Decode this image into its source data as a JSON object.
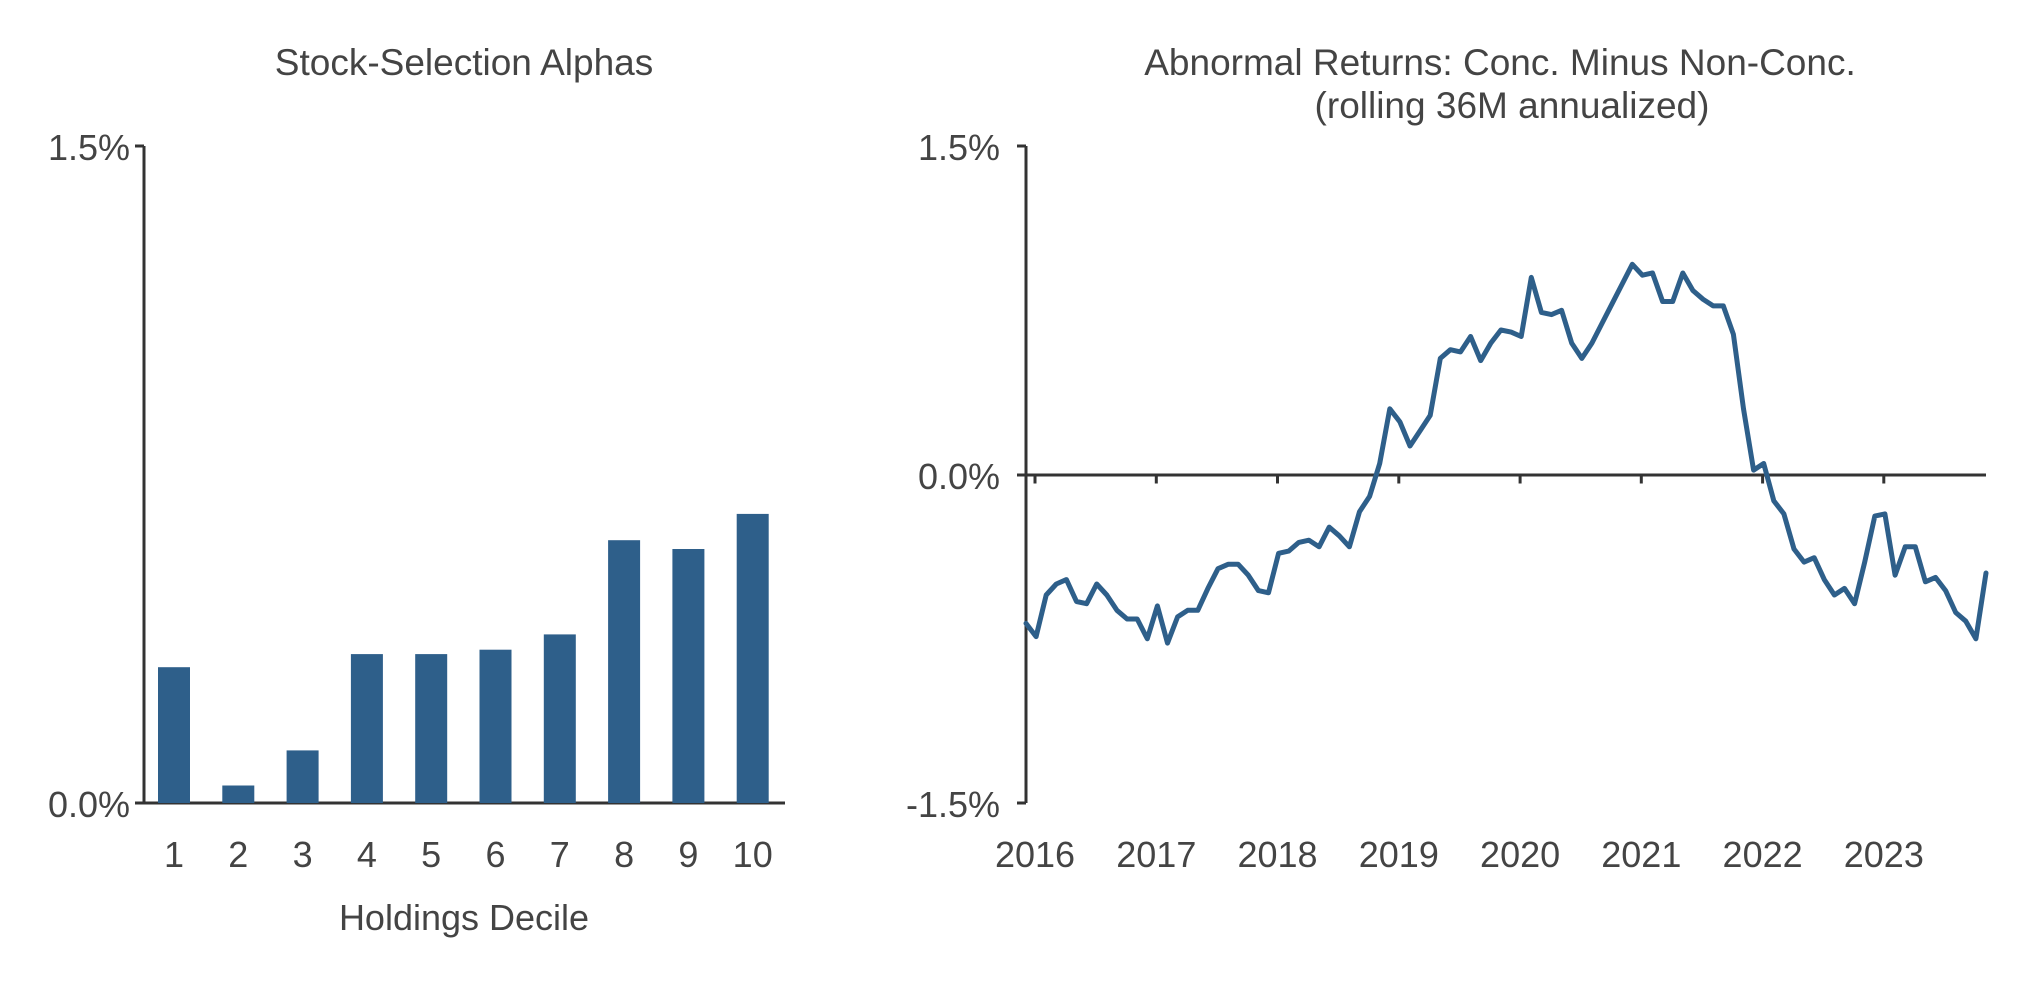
{
  "chart_data": [
    {
      "type": "bar",
      "title": "Stock-Selection Alphas",
      "xlabel": "Holdings Decile",
      "ylabel": "",
      "ylim": [
        0.0,
        1.5
      ],
      "yticks": [
        "0.0%",
        "1.5%"
      ],
      "categories": [
        "1",
        "2",
        "3",
        "4",
        "5",
        "6",
        "7",
        "8",
        "9",
        "10"
      ],
      "values": [
        0.31,
        0.04,
        0.12,
        0.34,
        0.34,
        0.35,
        0.385,
        0.6,
        0.58,
        0.66
      ],
      "color": "#2e5f8a",
      "grid": false,
      "legend": "none"
    },
    {
      "type": "line",
      "title": "Abnormal Returns: Conc. Minus Non-Conc.",
      "subtitle": "(rolling 36M annualized)",
      "xlabel": "",
      "ylabel": "",
      "ylim": [
        -1.5,
        1.5
      ],
      "yticks": [
        "1.5%",
        "0.0%",
        "-1.5%"
      ],
      "xlim": [
        "2016-01",
        "2023-12"
      ],
      "xticks": [
        "2016",
        "2017",
        "2018",
        "2019",
        "2020",
        "2021",
        "2022",
        "2023"
      ],
      "color": "#2e5f8a",
      "grid": false,
      "legend": "none",
      "x": [
        "2016-01",
        "2016-02",
        "2016-03",
        "2016-04",
        "2016-05",
        "2016-06",
        "2016-07",
        "2016-08",
        "2016-09",
        "2016-10",
        "2016-11",
        "2016-12",
        "2017-01",
        "2017-02",
        "2017-03",
        "2017-04",
        "2017-05",
        "2017-06",
        "2017-07",
        "2017-08",
        "2017-09",
        "2017-10",
        "2017-11",
        "2017-12",
        "2018-01",
        "2018-02",
        "2018-03",
        "2018-04",
        "2018-05",
        "2018-06",
        "2018-07",
        "2018-08",
        "2018-09",
        "2018-10",
        "2018-11",
        "2018-12",
        "2019-01",
        "2019-02",
        "2019-03",
        "2019-04",
        "2019-05",
        "2019-06",
        "2019-07",
        "2019-08",
        "2019-09",
        "2019-10",
        "2019-11",
        "2019-12",
        "2020-01",
        "2020-02",
        "2020-03",
        "2020-04",
        "2020-05",
        "2020-06",
        "2020-07",
        "2020-08",
        "2020-09",
        "2020-10",
        "2020-11",
        "2020-12",
        "2021-01",
        "2021-02",
        "2021-03",
        "2021-04",
        "2021-05",
        "2021-06",
        "2021-07",
        "2021-08",
        "2021-09",
        "2021-10",
        "2021-11",
        "2021-12",
        "2022-01",
        "2022-02",
        "2022-03",
        "2022-04",
        "2022-05",
        "2022-06",
        "2022-07",
        "2022-08",
        "2022-09",
        "2022-10",
        "2022-11",
        "2022-12",
        "2023-01",
        "2023-02",
        "2023-03",
        "2023-04",
        "2023-05",
        "2023-06",
        "2023-07",
        "2023-08",
        "2023-09",
        "2023-10",
        "2023-11",
        "2023-12"
      ],
      "y": [
        -0.68,
        -0.74,
        -0.55,
        -0.5,
        -0.48,
        -0.58,
        -0.59,
        -0.5,
        -0.55,
        -0.62,
        -0.66,
        -0.66,
        -0.75,
        -0.6,
        -0.77,
        -0.65,
        -0.62,
        -0.62,
        -0.52,
        -0.43,
        -0.41,
        -0.41,
        -0.46,
        -0.53,
        -0.54,
        -0.36,
        -0.35,
        -0.31,
        -0.3,
        -0.33,
        -0.24,
        -0.28,
        -0.33,
        -0.17,
        -0.1,
        0.05,
        0.3,
        0.24,
        0.13,
        0.2,
        0.27,
        0.53,
        0.57,
        0.56,
        0.63,
        0.52,
        0.6,
        0.66,
        0.65,
        0.63,
        0.9,
        0.74,
        0.73,
        0.75,
        0.6,
        0.53,
        0.6,
        0.69,
        0.78,
        0.87,
        0.96,
        0.91,
        0.92,
        0.79,
        0.79,
        0.92,
        0.84,
        0.8,
        0.77,
        0.77,
        0.64,
        0.3,
        0.02,
        0.05,
        -0.12,
        -0.18,
        -0.34,
        -0.4,
        -0.38,
        -0.48,
        -0.55,
        -0.52,
        -0.59,
        -0.4,
        -0.19,
        -0.18,
        -0.46,
        -0.33,
        -0.33,
        -0.49,
        -0.47,
        -0.53,
        -0.63,
        -0.67,
        -0.75,
        -0.45
      ]
    }
  ]
}
